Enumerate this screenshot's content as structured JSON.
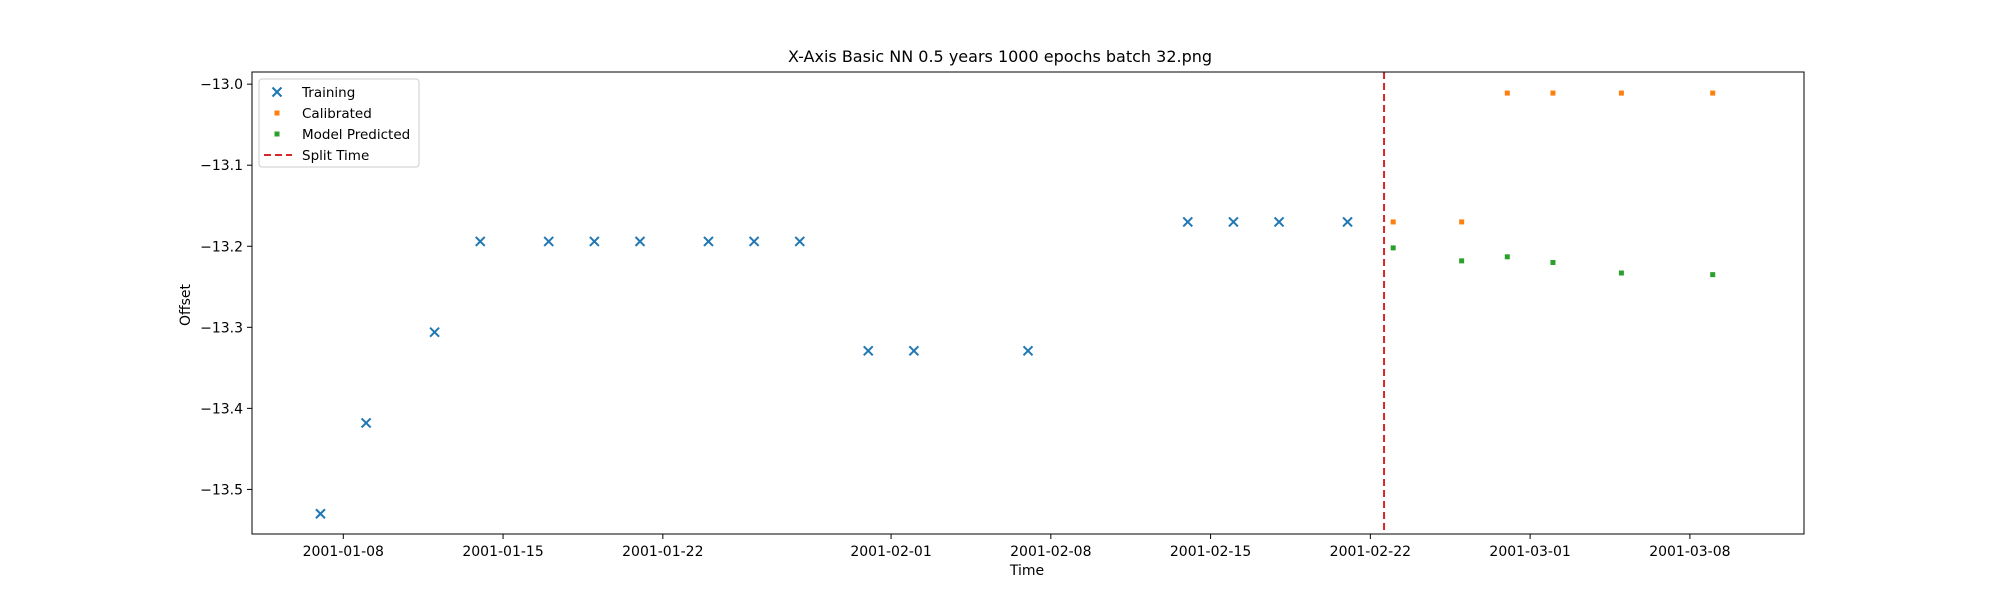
{
  "chart_data": {
    "type": "scatter",
    "title": "X-Axis Basic NN 0.5 years 1000 epochs batch 32.png",
    "xlabel": "Time",
    "ylabel": "Offset",
    "xlim": [
      "2001-01-04",
      "2001-03-13"
    ],
    "ylim": [
      -13.555,
      -12.985
    ],
    "x_ticks": [
      "2001-01-08",
      "2001-01-15",
      "2001-01-22",
      "2001-02-01",
      "2001-02-08",
      "2001-02-15",
      "2001-02-22",
      "2001-03-01",
      "2001-03-08"
    ],
    "y_ticks": [
      -13.5,
      -13.4,
      -13.3,
      -13.2,
      -13.1,
      -13.0
    ],
    "y_tick_labels": [
      "−13.5",
      "−13.4",
      "−13.3",
      "−13.2",
      "−13.1",
      "−13.0"
    ],
    "grid": false,
    "legend_position": "upper-left",
    "series": [
      {
        "name": "Training",
        "marker": "x",
        "color": "#1f77b4",
        "points": [
          {
            "x": "2001-01-07",
            "y": -13.53
          },
          {
            "x": "2001-01-09",
            "y": -13.418
          },
          {
            "x": "2001-01-12",
            "y": -13.306
          },
          {
            "x": "2001-01-14",
            "y": -13.194
          },
          {
            "x": "2001-01-17",
            "y": -13.194
          },
          {
            "x": "2001-01-19",
            "y": -13.194
          },
          {
            "x": "2001-01-21",
            "y": -13.194
          },
          {
            "x": "2001-01-24",
            "y": -13.194
          },
          {
            "x": "2001-01-26",
            "y": -13.194
          },
          {
            "x": "2001-01-28",
            "y": -13.194
          },
          {
            "x": "2001-01-31",
            "y": -13.329
          },
          {
            "x": "2001-02-02",
            "y": -13.329
          },
          {
            "x": "2001-02-07",
            "y": -13.329
          },
          {
            "x": "2001-02-14",
            "y": -13.17
          },
          {
            "x": "2001-02-16",
            "y": -13.17
          },
          {
            "x": "2001-02-18",
            "y": -13.17
          },
          {
            "x": "2001-02-21",
            "y": -13.17
          }
        ]
      },
      {
        "name": "Calibrated",
        "marker": "square",
        "color": "#ff7f0e",
        "points": [
          {
            "x": "2001-02-23",
            "y": -13.17
          },
          {
            "x": "2001-02-26",
            "y": -13.17
          },
          {
            "x": "2001-02-28",
            "y": -13.011
          },
          {
            "x": "2001-03-02",
            "y": -13.011
          },
          {
            "x": "2001-03-05",
            "y": -13.011
          },
          {
            "x": "2001-03-09",
            "y": -13.011
          }
        ]
      },
      {
        "name": "Model Predicted",
        "marker": "square",
        "color": "#2ca02c",
        "points": [
          {
            "x": "2001-02-23",
            "y": -13.202
          },
          {
            "x": "2001-02-26",
            "y": -13.218
          },
          {
            "x": "2001-02-28",
            "y": -13.213
          },
          {
            "x": "2001-03-02",
            "y": -13.22
          },
          {
            "x": "2001-03-05",
            "y": -13.233
          },
          {
            "x": "2001-03-09",
            "y": -13.235
          }
        ]
      }
    ],
    "split_time": {
      "name": "Split Time",
      "x": "2001-02-22.6",
      "color": "#d62728",
      "style": "dashed"
    }
  }
}
